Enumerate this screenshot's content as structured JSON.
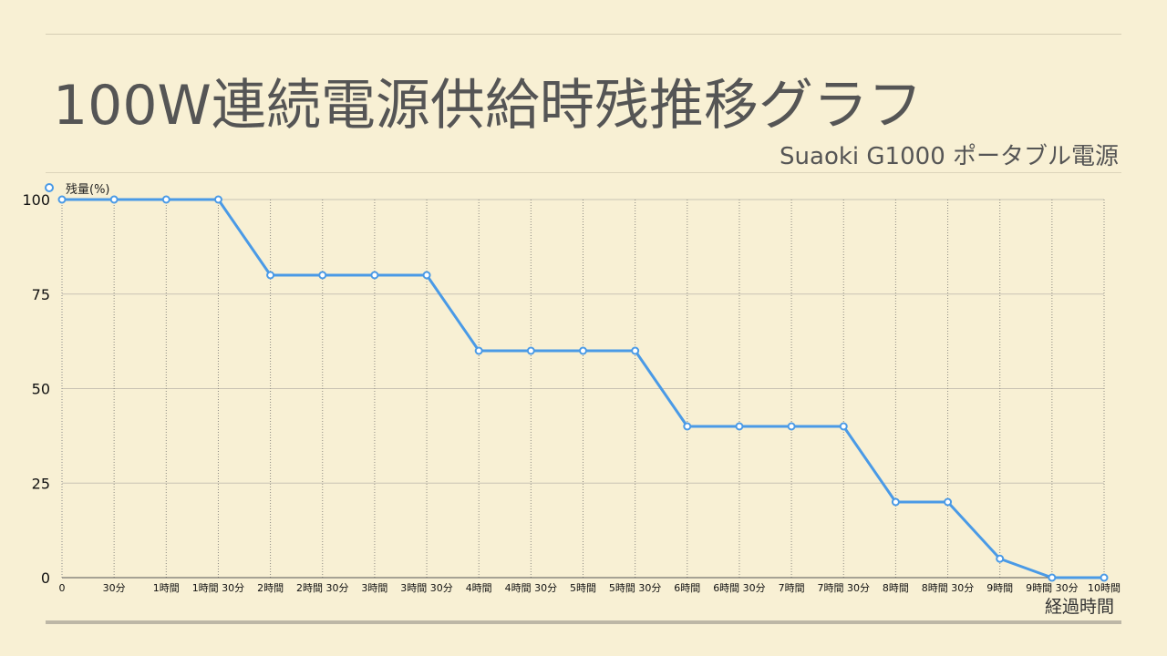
{
  "slide": {
    "title": "100W連続電源供給時残推移グラフ",
    "subtitle": "Suaoki G1000 ポータブル電源"
  },
  "chart_data": {
    "type": "line",
    "title": "100W連続電源供給時残推移グラフ",
    "subtitle": "Suaoki G1000 ポータブル電源",
    "xlabel": "経過時間",
    "ylabel": "",
    "categories": [
      "0",
      "30分",
      "1時間",
      "1時間 30分",
      "2時間",
      "2時間 30分",
      "3時間",
      "3時間 30分",
      "4時間",
      "4時間 30分",
      "5時間",
      "5時間 30分",
      "6時間",
      "6時間 30分",
      "7時間",
      "7時間 30分",
      "8時間",
      "8時間 30分",
      "9時間",
      "9時間 30分",
      "10時間"
    ],
    "series": [
      {
        "name": "残量(%)",
        "values": [
          100,
          100,
          100,
          100,
          80,
          80,
          80,
          80,
          60,
          60,
          60,
          60,
          40,
          40,
          40,
          40,
          20,
          20,
          5,
          0,
          0
        ],
        "color": "#4a9ae6"
      }
    ],
    "ylim": [
      0,
      100
    ],
    "yticks": [
      0,
      25,
      50,
      75,
      100
    ],
    "grid": true,
    "legend": "top-left"
  }
}
